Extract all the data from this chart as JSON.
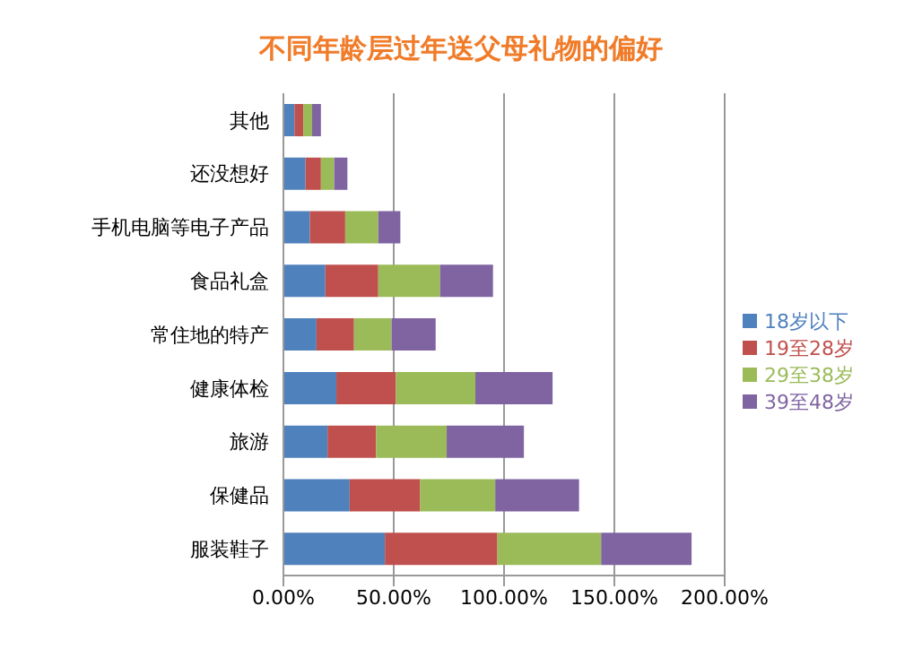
{
  "chart_data": {
    "type": "bar",
    "orientation": "horizontal",
    "stacked": true,
    "title": "不同年龄层过年送父母礼物的偏好",
    "categories": [
      "其他",
      "还没想好",
      "手机电脑等电子产品",
      "食品礼盒",
      "常住地的特产",
      "健康体检",
      "旅游",
      "保健品",
      "服装鞋子"
    ],
    "series": [
      {
        "name": "18岁以下",
        "color": "#4f81bd",
        "values": [
          5,
          10,
          12,
          19,
          15,
          24,
          20,
          30,
          46
        ]
      },
      {
        "name": "19至28岁",
        "color": "#c0504d",
        "values": [
          4,
          7,
          16,
          24,
          17,
          27,
          22,
          32,
          51
        ]
      },
      {
        "name": "29至38岁",
        "color": "#9bbb59",
        "values": [
          4,
          6,
          15,
          28,
          17,
          36,
          32,
          34,
          47
        ]
      },
      {
        "name": "39至48岁",
        "color": "#8064a2",
        "values": [
          4,
          6,
          10,
          24,
          20,
          35,
          35,
          38,
          41
        ]
      }
    ],
    "xlim": [
      0,
      200
    ],
    "xticks": [
      {
        "value": 0,
        "label": "0.00%"
      },
      {
        "value": 50,
        "label": "50.00%"
      },
      {
        "value": 100,
        "label": "100.00%"
      },
      {
        "value": 150,
        "label": "150.00%"
      },
      {
        "value": 200,
        "label": "200.00%"
      }
    ],
    "grid": "x",
    "legend": "right"
  }
}
